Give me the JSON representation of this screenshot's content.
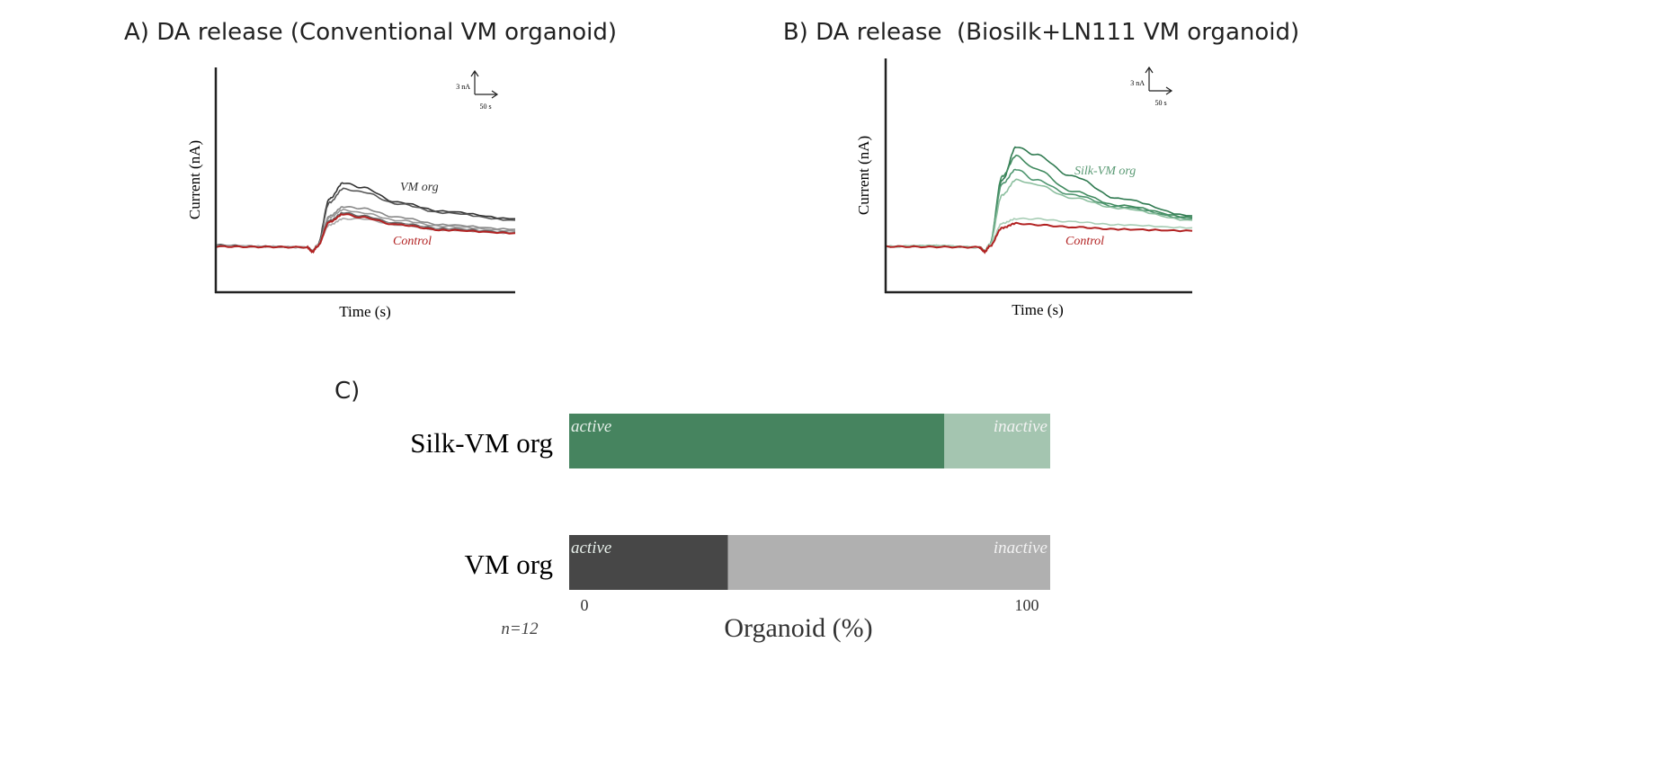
{
  "chart_data": [
    {
      "type": "line",
      "title": "A) DA release (Conventional VM organoid)",
      "xlabel": "Time (s)",
      "ylabel": "Current (nA)",
      "scale_bar": {
        "y_label": "3 nA",
        "x_label": "50 s"
      },
      "xlim": [
        0,
        660
      ],
      "ylim": [
        -6,
        24
      ],
      "x": [
        0,
        100,
        200,
        212,
        222,
        250,
        280,
        320,
        400,
        500,
        660
      ],
      "series": [
        {
          "name": "VM org",
          "color": "#333333",
          "values": [
            0.3,
            0.1,
            0,
            -0.6,
            0.2,
            6.5,
            8.6,
            8.0,
            6.0,
            4.8,
            3.8
          ]
        },
        {
          "name": "VM org",
          "color": "#555555",
          "values": [
            0.2,
            0.1,
            0,
            -0.5,
            0.2,
            6.0,
            7.8,
            7.4,
            5.8,
            4.6,
            3.6
          ]
        },
        {
          "name": "VM org",
          "color": "#888888",
          "values": [
            0.2,
            0.1,
            0,
            -0.5,
            0.2,
            4.2,
            5.4,
            5.2,
            4.0,
            3.0,
            2.4
          ]
        },
        {
          "name": "VM org",
          "color": "#999999",
          "values": [
            0.2,
            0.1,
            0,
            -0.5,
            0.2,
            4.0,
            5.0,
            4.6,
            3.6,
            2.8,
            2.2
          ]
        },
        {
          "name": "VM org",
          "color": "#666666",
          "values": [
            0.2,
            0.1,
            0,
            -0.5,
            0.2,
            3.6,
            4.6,
            4.2,
            3.2,
            2.5,
            2.0
          ]
        },
        {
          "name": "VM org",
          "color": "#aaaaaa",
          "values": [
            0.2,
            0.1,
            0,
            -0.5,
            0.2,
            3.0,
            3.8,
            3.8,
            3.0,
            2.3,
            1.9
          ]
        },
        {
          "name": "Control",
          "color": "#b22222",
          "values": [
            0.1,
            0.05,
            0,
            -0.6,
            0.1,
            3.4,
            4.4,
            4.0,
            3.0,
            2.3,
            1.9
          ]
        }
      ],
      "annotations": [
        "VM org",
        "Control"
      ]
    },
    {
      "type": "line",
      "title": "B) DA release  (Biosilk+LN111 VM organoid)",
      "xlabel": "Time (s)",
      "ylabel": "Current (nA)",
      "scale_bar": {
        "y_label": "3 nA",
        "x_label": "50 s"
      },
      "xlim": [
        0,
        660
      ],
      "ylim": [
        -6,
        24
      ],
      "x": [
        0,
        100,
        200,
        212,
        222,
        250,
        280,
        320,
        400,
        500,
        660
      ],
      "series": [
        {
          "name": "Silk-VM org",
          "color": "#2f7a50",
          "values": [
            0.1,
            0.2,
            0,
            -0.5,
            0.3,
            9.0,
            13.4,
            12.4,
            9.5,
            6.5,
            4.2
          ]
        },
        {
          "name": "Silk-VM org",
          "color": "#3f8a5e",
          "values": [
            0.1,
            0.2,
            0,
            -0.5,
            0.3,
            9.5,
            12.2,
            10.5,
            7.5,
            5.6,
            4.0
          ]
        },
        {
          "name": "Silk-VM org",
          "color": "#4f9670",
          "values": [
            0.1,
            0.2,
            0,
            -0.5,
            0.3,
            8.5,
            10.4,
            9.0,
            7.0,
            5.4,
            3.8
          ]
        },
        {
          "name": "Silk-VM org",
          "color": "#8cbf9f",
          "values": [
            0.1,
            0.2,
            0,
            -0.5,
            0.3,
            7.0,
            9.0,
            8.4,
            6.6,
            5.2,
            3.6
          ]
        },
        {
          "name": "Silk-VM org",
          "color": "#a8cdb5",
          "values": [
            0.1,
            0.2,
            0,
            -0.5,
            0.3,
            3.2,
            3.8,
            3.8,
            3.4,
            3.0,
            2.6
          ]
        },
        {
          "name": "Control",
          "color": "#b22222",
          "values": [
            0.1,
            0.05,
            0,
            -0.6,
            0.1,
            2.6,
            3.2,
            3.0,
            2.7,
            2.4,
            2.2
          ]
        }
      ],
      "annotations": [
        "Silk-VM org",
        "Control"
      ]
    },
    {
      "type": "bar",
      "orientation": "horizontal",
      "stacked": true,
      "title": "C)",
      "xlabel": "Organoid (%)",
      "xlim": [
        0,
        100
      ],
      "x_ticks": [
        "0",
        "100"
      ],
      "categories": [
        "Silk-VM org",
        "VM org"
      ],
      "series": [
        {
          "name": "active",
          "values": [
            78,
            33
          ],
          "colors": [
            "#46845f",
            "#474747"
          ]
        },
        {
          "name": "inactive",
          "values": [
            22,
            67
          ],
          "colors": [
            "#a4c5b0",
            "#b0b0b0"
          ]
        }
      ],
      "note": "n=12"
    }
  ]
}
